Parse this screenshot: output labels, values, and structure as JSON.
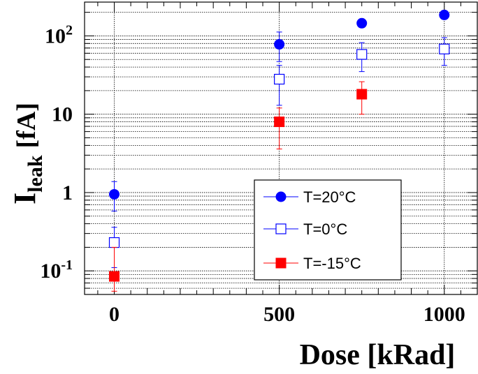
{
  "chart_data": {
    "type": "scatter",
    "title": "",
    "xlabel": "Dose [kRad]",
    "ylabel": {
      "main": "I",
      "sub": "leak",
      "unit": "[fA]"
    },
    "xlim": [
      -90,
      1100
    ],
    "ylim": [
      0.05,
      270
    ],
    "yscale": "log",
    "x_ticks": [
      {
        "value": 0,
        "label": "0"
      },
      {
        "value": 500,
        "label": "500"
      },
      {
        "value": 1000,
        "label": "1000"
      }
    ],
    "y_ticks": [
      {
        "value": 0.1,
        "label": "10",
        "sup": "-1"
      },
      {
        "value": 1,
        "label": "1",
        "sup": ""
      },
      {
        "value": 10,
        "label": "10",
        "sup": ""
      },
      {
        "value": 100,
        "label": "10",
        "sup": "2"
      }
    ],
    "grid": true,
    "legend": "lower-right",
    "series": [
      {
        "name": "T=20°C",
        "color": "#0000ff",
        "marker": "circle-filled",
        "points": [
          {
            "x": 0,
            "y": 0.95,
            "lo": 0.58,
            "hi": 1.38
          },
          {
            "x": 500,
            "y": 78,
            "lo": 47,
            "hi": 112
          },
          {
            "x": 750,
            "y": 145,
            "lo": null,
            "hi": null
          },
          {
            "x": 1000,
            "y": 185,
            "lo": null,
            "hi": null
          }
        ]
      },
      {
        "name": "T=0°C",
        "color": "#0000ff",
        "marker": "square-open",
        "points": [
          {
            "x": 0,
            "y": 0.23,
            "lo": 0.11,
            "hi": 0.36
          },
          {
            "x": 500,
            "y": 28,
            "lo": 13,
            "hi": 42
          },
          {
            "x": 750,
            "y": 58,
            "lo": 35,
            "hi": 82
          },
          {
            "x": 1000,
            "y": 68,
            "lo": 42,
            "hi": 95
          }
        ]
      },
      {
        "name": "T=-15°C",
        "color": "#ff0000",
        "marker": "square-filled",
        "points": [
          {
            "x": 0,
            "y": 0.085,
            "lo": 0.055,
            "hi": 0.2
          },
          {
            "x": 500,
            "y": 8,
            "lo": 3.6,
            "hi": 12
          },
          {
            "x": 750,
            "y": 18,
            "lo": 10,
            "hi": 26
          }
        ]
      }
    ]
  }
}
